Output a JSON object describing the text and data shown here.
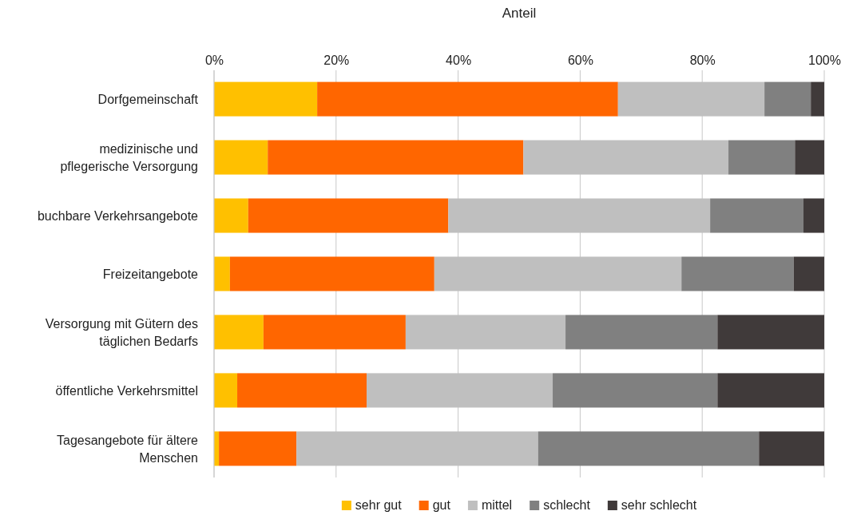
{
  "chart_data": {
    "type": "bar",
    "orientation": "horizontal",
    "stacked": true,
    "xlabel": "Anteil",
    "categories": [
      "Dorfgemeinschaft",
      "medizinische und pflegerische Versorgung",
      "buchbare Verkehrsangebote",
      "Freizeitangebote",
      "Versorgung mit Gütern des täglichen Bedarfs",
      "öffentliche Verkehrsmittel",
      "Tagesangebote für ältere Menschen"
    ],
    "series": [
      {
        "name": "sehr gut",
        "color": "#ffc000",
        "values": [
          16.9,
          8.8,
          5.6,
          2.6,
          8.1,
          3.8,
          0.8
        ]
      },
      {
        "name": "gut",
        "color": "#ff6600",
        "values": [
          49.3,
          41.9,
          32.8,
          33.5,
          23.3,
          21.2,
          12.7
        ]
      },
      {
        "name": "mittel",
        "color": "#bfbfbf",
        "values": [
          24.0,
          33.6,
          42.9,
          40.5,
          26.2,
          30.5,
          39.6
        ]
      },
      {
        "name": "schlecht",
        "color": "#808080",
        "values": [
          7.6,
          10.9,
          15.3,
          18.4,
          24.9,
          27.0,
          36.2
        ]
      },
      {
        "name": "sehr schlecht",
        "color": "#403a3a",
        "values": [
          2.2,
          4.8,
          3.4,
          5.0,
          17.5,
          17.5,
          10.7
        ]
      }
    ],
    "xlim": [
      0,
      100
    ],
    "xticks": [
      {
        "value": 0,
        "label": "0%"
      },
      {
        "value": 20,
        "label": "20%"
      },
      {
        "value": 40,
        "label": "40%"
      },
      {
        "value": 60,
        "label": "60%"
      },
      {
        "value": 80,
        "label": "80%"
      },
      {
        "value": 100,
        "label": "100%"
      }
    ],
    "grid": "x",
    "legend": "bottom"
  }
}
